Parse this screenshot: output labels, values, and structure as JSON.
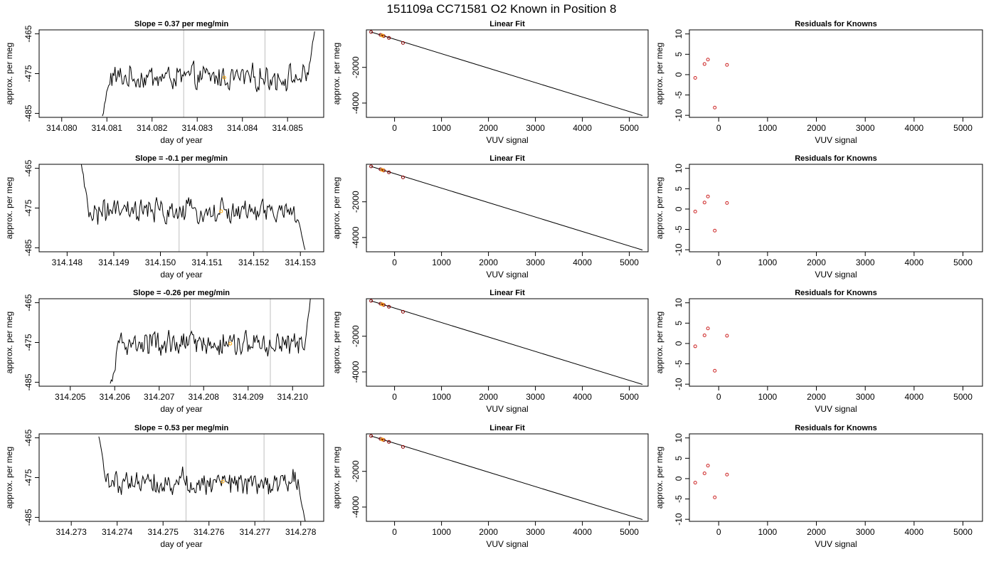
{
  "figure": {
    "title": "151109a      CC71581    O2 Known in Position  8"
  },
  "chart_data": [
    {
      "type": "line",
      "panel": "trace",
      "row": 0,
      "title": "Slope =  0.37  per meg/min",
      "xlabel": "day of year",
      "ylabel": "approx. per meg",
      "xlim": [
        314.0795,
        314.0858
      ],
      "ylim": [
        -486,
        -464
      ],
      "xticks": [
        314.08,
        314.081,
        314.082,
        314.083,
        314.084,
        314.085
      ],
      "xtick_labels": [
        "314.080",
        "314.081",
        "314.082",
        "314.083",
        "314.084",
        "314.085"
      ],
      "yticks": [
        -465,
        -475,
        -485
      ],
      "ytick_labels": [
        "-465",
        "-475",
        "-485"
      ],
      "vlines": [
        314.0827,
        314.0845
      ],
      "start": 314.0809,
      "end": 314.0856,
      "mean": -476.0,
      "amp": 2.8,
      "pre": {
        "from": -486,
        "to": -477
      },
      "post": {
        "from": -475,
        "to": -464
      },
      "marker": {
        "x": 314.0836,
        "y": -476.0
      },
      "line_color": "#000000",
      "vline_color": "#bfbfbf",
      "marker_color": "#ffa500"
    },
    {
      "type": "scatter",
      "panel": "fit",
      "row": 0,
      "title": "Linear Fit",
      "xlabel": "VUV signal",
      "ylabel": "approx. per meg",
      "xlim": [
        -600,
        5400
      ],
      "ylim": [
        -4800,
        100
      ],
      "xticks": [
        0,
        1000,
        2000,
        3000,
        4000,
        5000
      ],
      "xtick_labels": [
        "0",
        "1000",
        "2000",
        "3000",
        "4000",
        "5000"
      ],
      "yticks": [
        -2000,
        -4000
      ],
      "ytick_labels": [
        "-2000",
        "-4000"
      ],
      "points": [
        [
          -500,
          -20
        ],
        [
          -300,
          -180
        ],
        [
          -230,
          -250
        ],
        [
          -120,
          -350
        ],
        [
          180,
          -630
        ]
      ],
      "highlight": [
        [
          -260,
          -215
        ]
      ],
      "fit_line": [
        [
          -500,
          -20
        ],
        [
          5280,
          -4700
        ]
      ],
      "point_color": "#8b0000",
      "highlight_color": "#ffa500",
      "line_color": "#000000"
    },
    {
      "type": "scatter",
      "panel": "residuals",
      "row": 0,
      "title": "Residuals for Knowns",
      "xlabel": "VUV signal",
      "ylabel": "approx. per meg",
      "xlim": [
        -600,
        5400
      ],
      "ylim": [
        -10.5,
        11
      ],
      "xticks": [
        0,
        1000,
        2000,
        3000,
        4000,
        5000
      ],
      "xtick_labels": [
        "0",
        "1000",
        "2000",
        "3000",
        "4000",
        "5000"
      ],
      "yticks": [
        10,
        5,
        0,
        -5,
        -10
      ],
      "ytick_labels": [
        "10",
        "5",
        "0",
        "-5",
        "-10"
      ],
      "points": [
        [
          -480,
          -0.8
        ],
        [
          -290,
          2.6
        ],
        [
          -220,
          3.7
        ],
        [
          -80,
          -8.1
        ],
        [
          170,
          2.4
        ]
      ],
      "point_color": "#cc2222"
    },
    {
      "type": "line",
      "panel": "trace",
      "row": 1,
      "title": "Slope =  -0.1  per meg/min",
      "xlabel": "day of year",
      "ylabel": "approx. per meg",
      "xlim": [
        314.1474,
        314.1535
      ],
      "ylim": [
        -486,
        -464
      ],
      "xticks": [
        314.148,
        314.149,
        314.15,
        314.151,
        314.152,
        314.153
      ],
      "xtick_labels": [
        "314.148",
        "314.149",
        "314.150",
        "314.151",
        "314.152",
        "314.153"
      ],
      "yticks": [
        -465,
        -475,
        -485
      ],
      "ytick_labels": [
        "-465",
        "-475",
        "-485"
      ],
      "vlines": [
        314.1504,
        314.1522
      ],
      "start": 314.1483,
      "end": 314.1531,
      "mean": -476.0,
      "amp": 2.8,
      "pre": {
        "from": -464,
        "to": -474
      },
      "post": {
        "from": -478,
        "to": -486
      },
      "marker": {
        "x": 314.1513,
        "y": -475.8
      },
      "line_color": "#000000",
      "vline_color": "#bfbfbf",
      "marker_color": "#ffa500"
    },
    {
      "type": "scatter",
      "panel": "fit",
      "row": 1,
      "title": "Linear Fit",
      "xlabel": "VUV signal",
      "ylabel": "approx. per meg",
      "xlim": [
        -600,
        5400
      ],
      "ylim": [
        -4800,
        100
      ],
      "xticks": [
        0,
        1000,
        2000,
        3000,
        4000,
        5000
      ],
      "xtick_labels": [
        "0",
        "1000",
        "2000",
        "3000",
        "4000",
        "5000"
      ],
      "yticks": [
        -2000,
        -4000
      ],
      "ytick_labels": [
        "-2000",
        "-4000"
      ],
      "points": [
        [
          -500,
          -20
        ],
        [
          -300,
          -180
        ],
        [
          -230,
          -250
        ],
        [
          -120,
          -350
        ],
        [
          180,
          -630
        ]
      ],
      "highlight": [
        [
          -260,
          -215
        ]
      ],
      "fit_line": [
        [
          -500,
          -20
        ],
        [
          5280,
          -4700
        ]
      ],
      "point_color": "#8b0000",
      "highlight_color": "#ffa500",
      "line_color": "#000000"
    },
    {
      "type": "scatter",
      "panel": "residuals",
      "row": 1,
      "title": "Residuals for Knowns",
      "xlabel": "VUV signal",
      "ylabel": "approx. per meg",
      "xlim": [
        -600,
        5400
      ],
      "ylim": [
        -10.5,
        11
      ],
      "xticks": [
        0,
        1000,
        2000,
        3000,
        4000,
        5000
      ],
      "xtick_labels": [
        "0",
        "1000",
        "2000",
        "3000",
        "4000",
        "5000"
      ],
      "yticks": [
        10,
        5,
        0,
        -5,
        -10
      ],
      "ytick_labels": [
        "10",
        "5",
        "0",
        "-5",
        "-10"
      ],
      "points": [
        [
          -480,
          -0.6
        ],
        [
          -290,
          1.6
        ],
        [
          -220,
          3.1
        ],
        [
          -80,
          -5.3
        ],
        [
          170,
          1.5
        ]
      ],
      "point_color": "#cc2222"
    },
    {
      "type": "line",
      "panel": "trace",
      "row": 2,
      "title": "Slope =  -0.26  per meg/min",
      "xlabel": "day of year",
      "ylabel": "approx. per meg",
      "xlim": [
        314.2043,
        314.2107
      ],
      "ylim": [
        -486,
        -464
      ],
      "xticks": [
        314.205,
        314.206,
        314.207,
        314.208,
        314.209,
        314.21
      ],
      "xtick_labels": [
        "314.205",
        "314.206",
        "314.207",
        "314.208",
        "314.209",
        "314.210"
      ],
      "yticks": [
        -465,
        -475,
        -485
      ],
      "ytick_labels": [
        "-465",
        "-475",
        "-485"
      ],
      "vlines": [
        314.2077,
        314.2095
      ],
      "start": 314.2059,
      "end": 314.2104,
      "mean": -475.5,
      "amp": 2.8,
      "pre": {
        "from": -486,
        "to": -481
      },
      "post": {
        "from": -477,
        "to": -464
      },
      "marker": {
        "x": 314.2086,
        "y": -475.3
      },
      "line_color": "#000000",
      "vline_color": "#bfbfbf",
      "marker_color": "#ffa500"
    },
    {
      "type": "scatter",
      "panel": "fit",
      "row": 2,
      "title": "Linear Fit",
      "xlabel": "VUV signal",
      "ylabel": "approx. per meg",
      "xlim": [
        -600,
        5400
      ],
      "ylim": [
        -4800,
        100
      ],
      "xticks": [
        0,
        1000,
        2000,
        3000,
        4000,
        5000
      ],
      "xtick_labels": [
        "0",
        "1000",
        "2000",
        "3000",
        "4000",
        "5000"
      ],
      "yticks": [
        -2000,
        -4000
      ],
      "ytick_labels": [
        "-2000",
        "-4000"
      ],
      "points": [
        [
          -500,
          -20
        ],
        [
          -300,
          -180
        ],
        [
          -230,
          -250
        ],
        [
          -120,
          -350
        ],
        [
          180,
          -630
        ]
      ],
      "highlight": [
        [
          -260,
          -215
        ]
      ],
      "fit_line": [
        [
          -500,
          -20
        ],
        [
          5280,
          -4700
        ]
      ],
      "point_color": "#8b0000",
      "highlight_color": "#ffa500",
      "line_color": "#000000"
    },
    {
      "type": "scatter",
      "panel": "residuals",
      "row": 2,
      "title": "Residuals for Knowns",
      "xlabel": "VUV signal",
      "ylabel": "approx. per meg",
      "xlim": [
        -600,
        5400
      ],
      "ylim": [
        -10.5,
        11
      ],
      "xticks": [
        0,
        1000,
        2000,
        3000,
        4000,
        5000
      ],
      "xtick_labels": [
        "0",
        "1000",
        "2000",
        "3000",
        "4000",
        "5000"
      ],
      "yticks": [
        10,
        5,
        0,
        -5,
        -10
      ],
      "ytick_labels": [
        "10",
        "5",
        "0",
        "-5",
        "-10"
      ],
      "points": [
        [
          -480,
          -0.7
        ],
        [
          -290,
          2.0
        ],
        [
          -220,
          3.7
        ],
        [
          -80,
          -6.7
        ],
        [
          170,
          1.9
        ]
      ],
      "point_color": "#cc2222"
    },
    {
      "type": "line",
      "panel": "trace",
      "row": 3,
      "title": "Slope =  0.53  per meg/min",
      "xlabel": "day of year",
      "ylabel": "approx. per meg",
      "xlim": [
        314.2723,
        314.2785
      ],
      "ylim": [
        -486,
        -464
      ],
      "xticks": [
        314.273,
        314.274,
        314.275,
        314.276,
        314.277,
        314.278
      ],
      "xtick_labels": [
        "314.273",
        "314.274",
        "314.275",
        "314.276",
        "314.277",
        "314.278"
      ],
      "yticks": [
        -465,
        -475,
        -485
      ],
      "ytick_labels": [
        "-465",
        "-475",
        "-485"
      ],
      "vlines": [
        314.2755,
        314.2772
      ],
      "start": 314.2736,
      "end": 314.2781,
      "mean": -476.0,
      "amp": 2.8,
      "pre": {
        "from": -464,
        "to": -474
      },
      "post": {
        "from": -478,
        "to": -486
      },
      "marker": {
        "x": 314.2763,
        "y": -476.0
      },
      "line_color": "#000000",
      "vline_color": "#bfbfbf",
      "marker_color": "#ffa500"
    },
    {
      "type": "scatter",
      "panel": "fit",
      "row": 3,
      "title": "Linear Fit",
      "xlabel": "VUV signal",
      "ylabel": "approx. per meg",
      "xlim": [
        -600,
        5400
      ],
      "ylim": [
        -4800,
        100
      ],
      "xticks": [
        0,
        1000,
        2000,
        3000,
        4000,
        5000
      ],
      "xtick_labels": [
        "0",
        "1000",
        "2000",
        "3000",
        "4000",
        "5000"
      ],
      "yticks": [
        -2000,
        -4000
      ],
      "ytick_labels": [
        "-2000",
        "-4000"
      ],
      "points": [
        [
          -500,
          -20
        ],
        [
          -300,
          -180
        ],
        [
          -230,
          -250
        ],
        [
          -120,
          -350
        ],
        [
          180,
          -630
        ]
      ],
      "highlight": [
        [
          -260,
          -215
        ]
      ],
      "fit_line": [
        [
          -500,
          -20
        ],
        [
          5280,
          -4700
        ]
      ],
      "point_color": "#8b0000",
      "highlight_color": "#ffa500",
      "line_color": "#000000"
    },
    {
      "type": "scatter",
      "panel": "residuals",
      "row": 3,
      "title": "Residuals for Knowns",
      "xlabel": "VUV signal",
      "ylabel": "approx. per meg",
      "xlim": [
        -600,
        5400
      ],
      "ylim": [
        -10.5,
        11
      ],
      "xticks": [
        0,
        1000,
        2000,
        3000,
        4000,
        5000
      ],
      "xtick_labels": [
        "0",
        "1000",
        "2000",
        "3000",
        "4000",
        "5000"
      ],
      "yticks": [
        10,
        5,
        0,
        -5,
        -10
      ],
      "ytick_labels": [
        "10",
        "5",
        "0",
        "-5",
        "-10"
      ],
      "points": [
        [
          -480,
          -1.0
        ],
        [
          -290,
          1.3
        ],
        [
          -220,
          3.2
        ],
        [
          -80,
          -4.6
        ],
        [
          170,
          1.0
        ]
      ],
      "point_color": "#cc2222"
    }
  ]
}
